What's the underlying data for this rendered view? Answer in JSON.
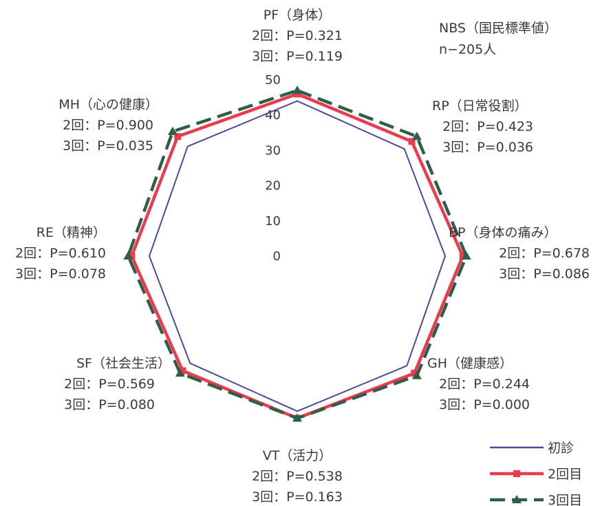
{
  "chart_data": {
    "type": "radar",
    "title": "",
    "note": [
      "NBS（国民標準値）",
      "n−205人"
    ],
    "rlim": [
      0,
      50
    ],
    "ticks": [
      "0",
      "10",
      "20",
      "30",
      "40",
      "50"
    ],
    "axes": [
      {
        "name": "PF（身体）",
        "stats": [
          "2回：P=0.321",
          "3回：P=0.119"
        ]
      },
      {
        "name": "RP（日常役割）",
        "stats": [
          "2回：P=0.423",
          "3回：P=0.036"
        ]
      },
      {
        "name": "BP（身体の痛み）",
        "stats": [
          "2回：P=0.678",
          "3回：P=0.086"
        ]
      },
      {
        "name": "GH（健康感）",
        "stats": [
          "2回：P=0.244",
          "3回：P=0.000"
        ]
      },
      {
        "name": "VT（活力）",
        "stats": [
          "2回：P=0.538",
          "3回：P=0.163"
        ]
      },
      {
        "name": "SF（社会生活）",
        "stats": [
          "2回：P=0.569",
          "3回：P=0.080"
        ]
      },
      {
        "name": "RE（精神）",
        "stats": [
          "2回：P=0.610",
          "3回：P=0.078"
        ]
      },
      {
        "name": "MH（心の健康）",
        "stats": [
          "2回：P=0.900",
          "3回：P=0.035"
        ]
      }
    ],
    "series": [
      {
        "name": "初診",
        "values": [
          44,
          43,
          42,
          44,
          44,
          43,
          42,
          44
        ],
        "color": "#4a4a9a",
        "marker": "none"
      },
      {
        "name": "2回目",
        "values": [
          46,
          46,
          47,
          47,
          46,
          46,
          47,
          48
        ],
        "color": "#ee3a4e",
        "marker": "square"
      },
      {
        "name": "3回目",
        "values": [
          47,
          48,
          48,
          48,
          46,
          47,
          48,
          50
        ],
        "color": "#2e5e46",
        "marker": "triangle",
        "dashed": true
      }
    ],
    "legend_position": "bottom-right"
  }
}
